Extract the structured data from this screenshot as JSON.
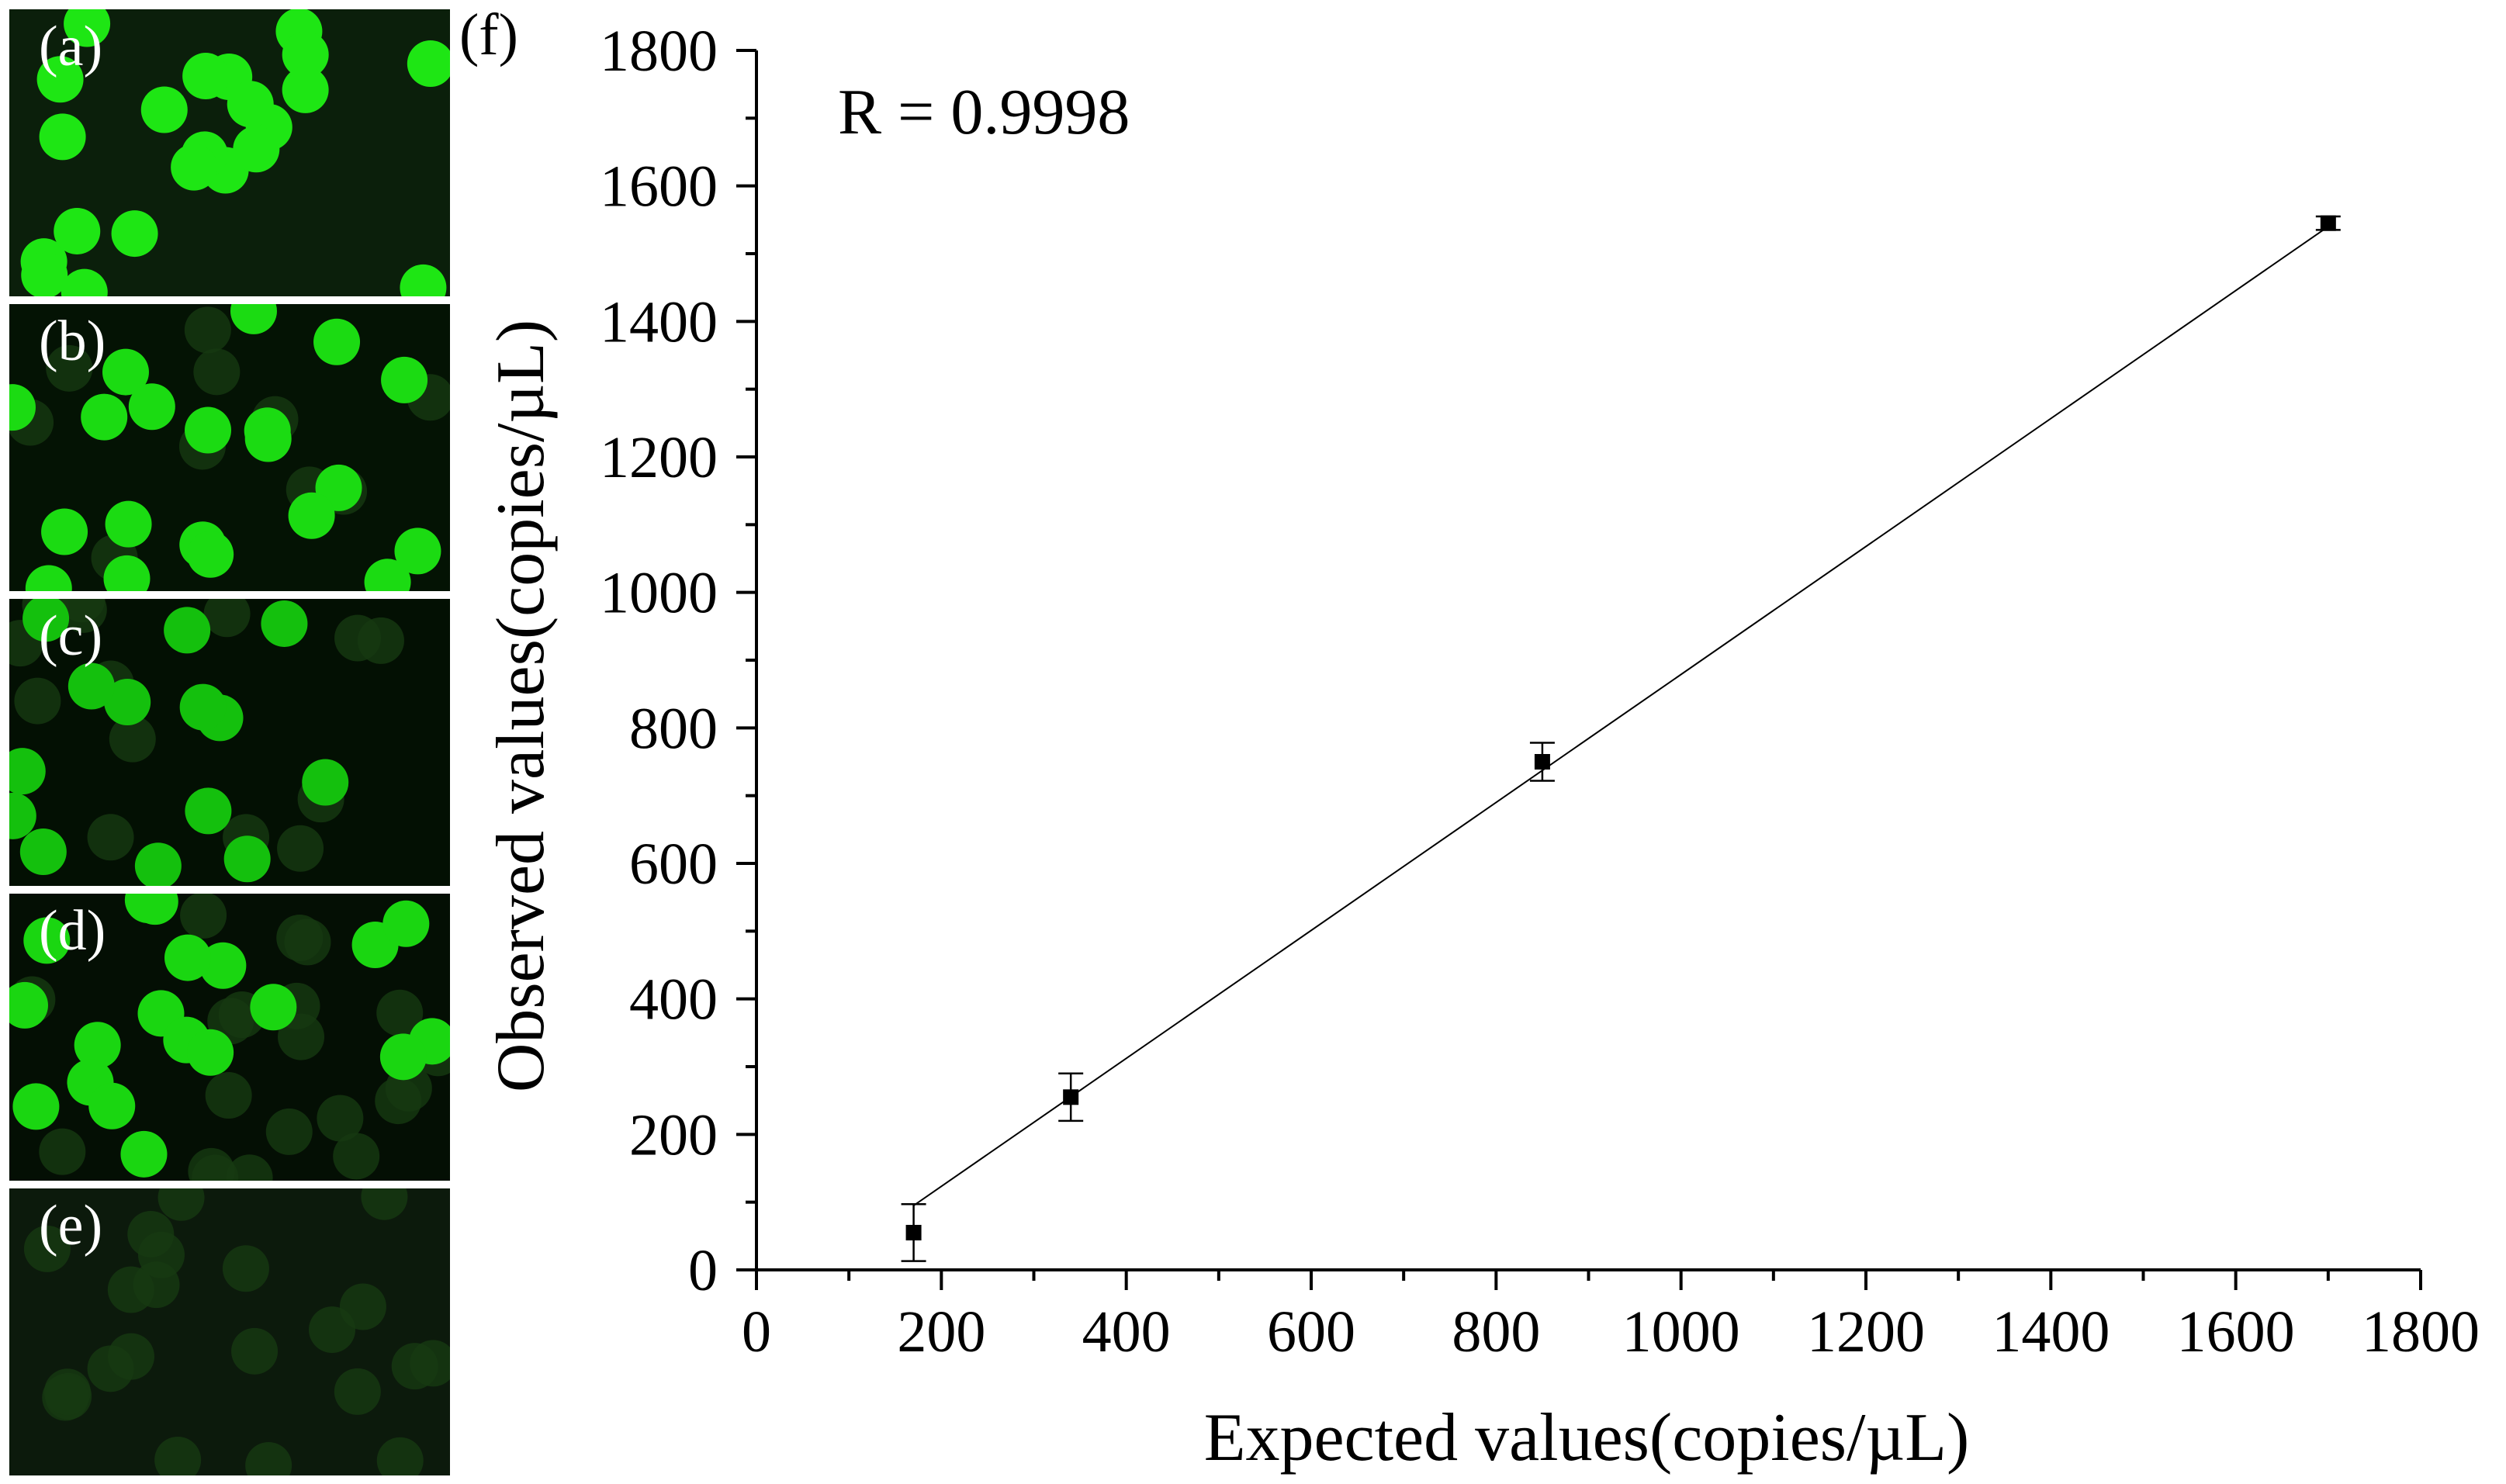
{
  "panels": [
    {
      "label": "(a)",
      "background": "#0b1f0b",
      "brightness": 1.0,
      "dim_drops": 0
    },
    {
      "label": "(b)",
      "background": "#041304",
      "brightness": 0.9,
      "dim_drops": 10
    },
    {
      "label": "(c)",
      "background": "#031003",
      "brightness": 0.65,
      "dim_drops": 14
    },
    {
      "label": "(d)",
      "background": "#040f04",
      "brightness": 0.85,
      "dim_drops": 20
    },
    {
      "label": "(e)",
      "background": "#0c1a0c",
      "brightness": 0.0,
      "dim_drops": 22
    }
  ],
  "chart_data": {
    "type": "scatter",
    "panel_label": "(f)",
    "annotation": "R = 0.9998",
    "xlabel": "Expected values(copies/µL)",
    "ylabel": "Observed values(copies/µL)",
    "xlim": [
      0,
      1800
    ],
    "ylim": [
      0,
      1800
    ],
    "xticks": [
      0,
      200,
      400,
      600,
      800,
      1000,
      1200,
      1400,
      1600,
      1800
    ],
    "yticks": [
      0,
      200,
      400,
      600,
      800,
      1000,
      1200,
      1400,
      1600,
      1800
    ],
    "points": [
      {
        "x": 170,
        "y": 55,
        "err": 42
      },
      {
        "x": 340,
        "y": 255,
        "err": 35
      },
      {
        "x": 850,
        "y": 750,
        "err": 28
      },
      {
        "x": 1700,
        "y": 1545,
        "err": 10
      }
    ],
    "fit_line": {
      "x": [
        170,
        1700
      ],
      "y": [
        95,
        1540
      ]
    },
    "grid": false,
    "marker_color": "#000000"
  }
}
